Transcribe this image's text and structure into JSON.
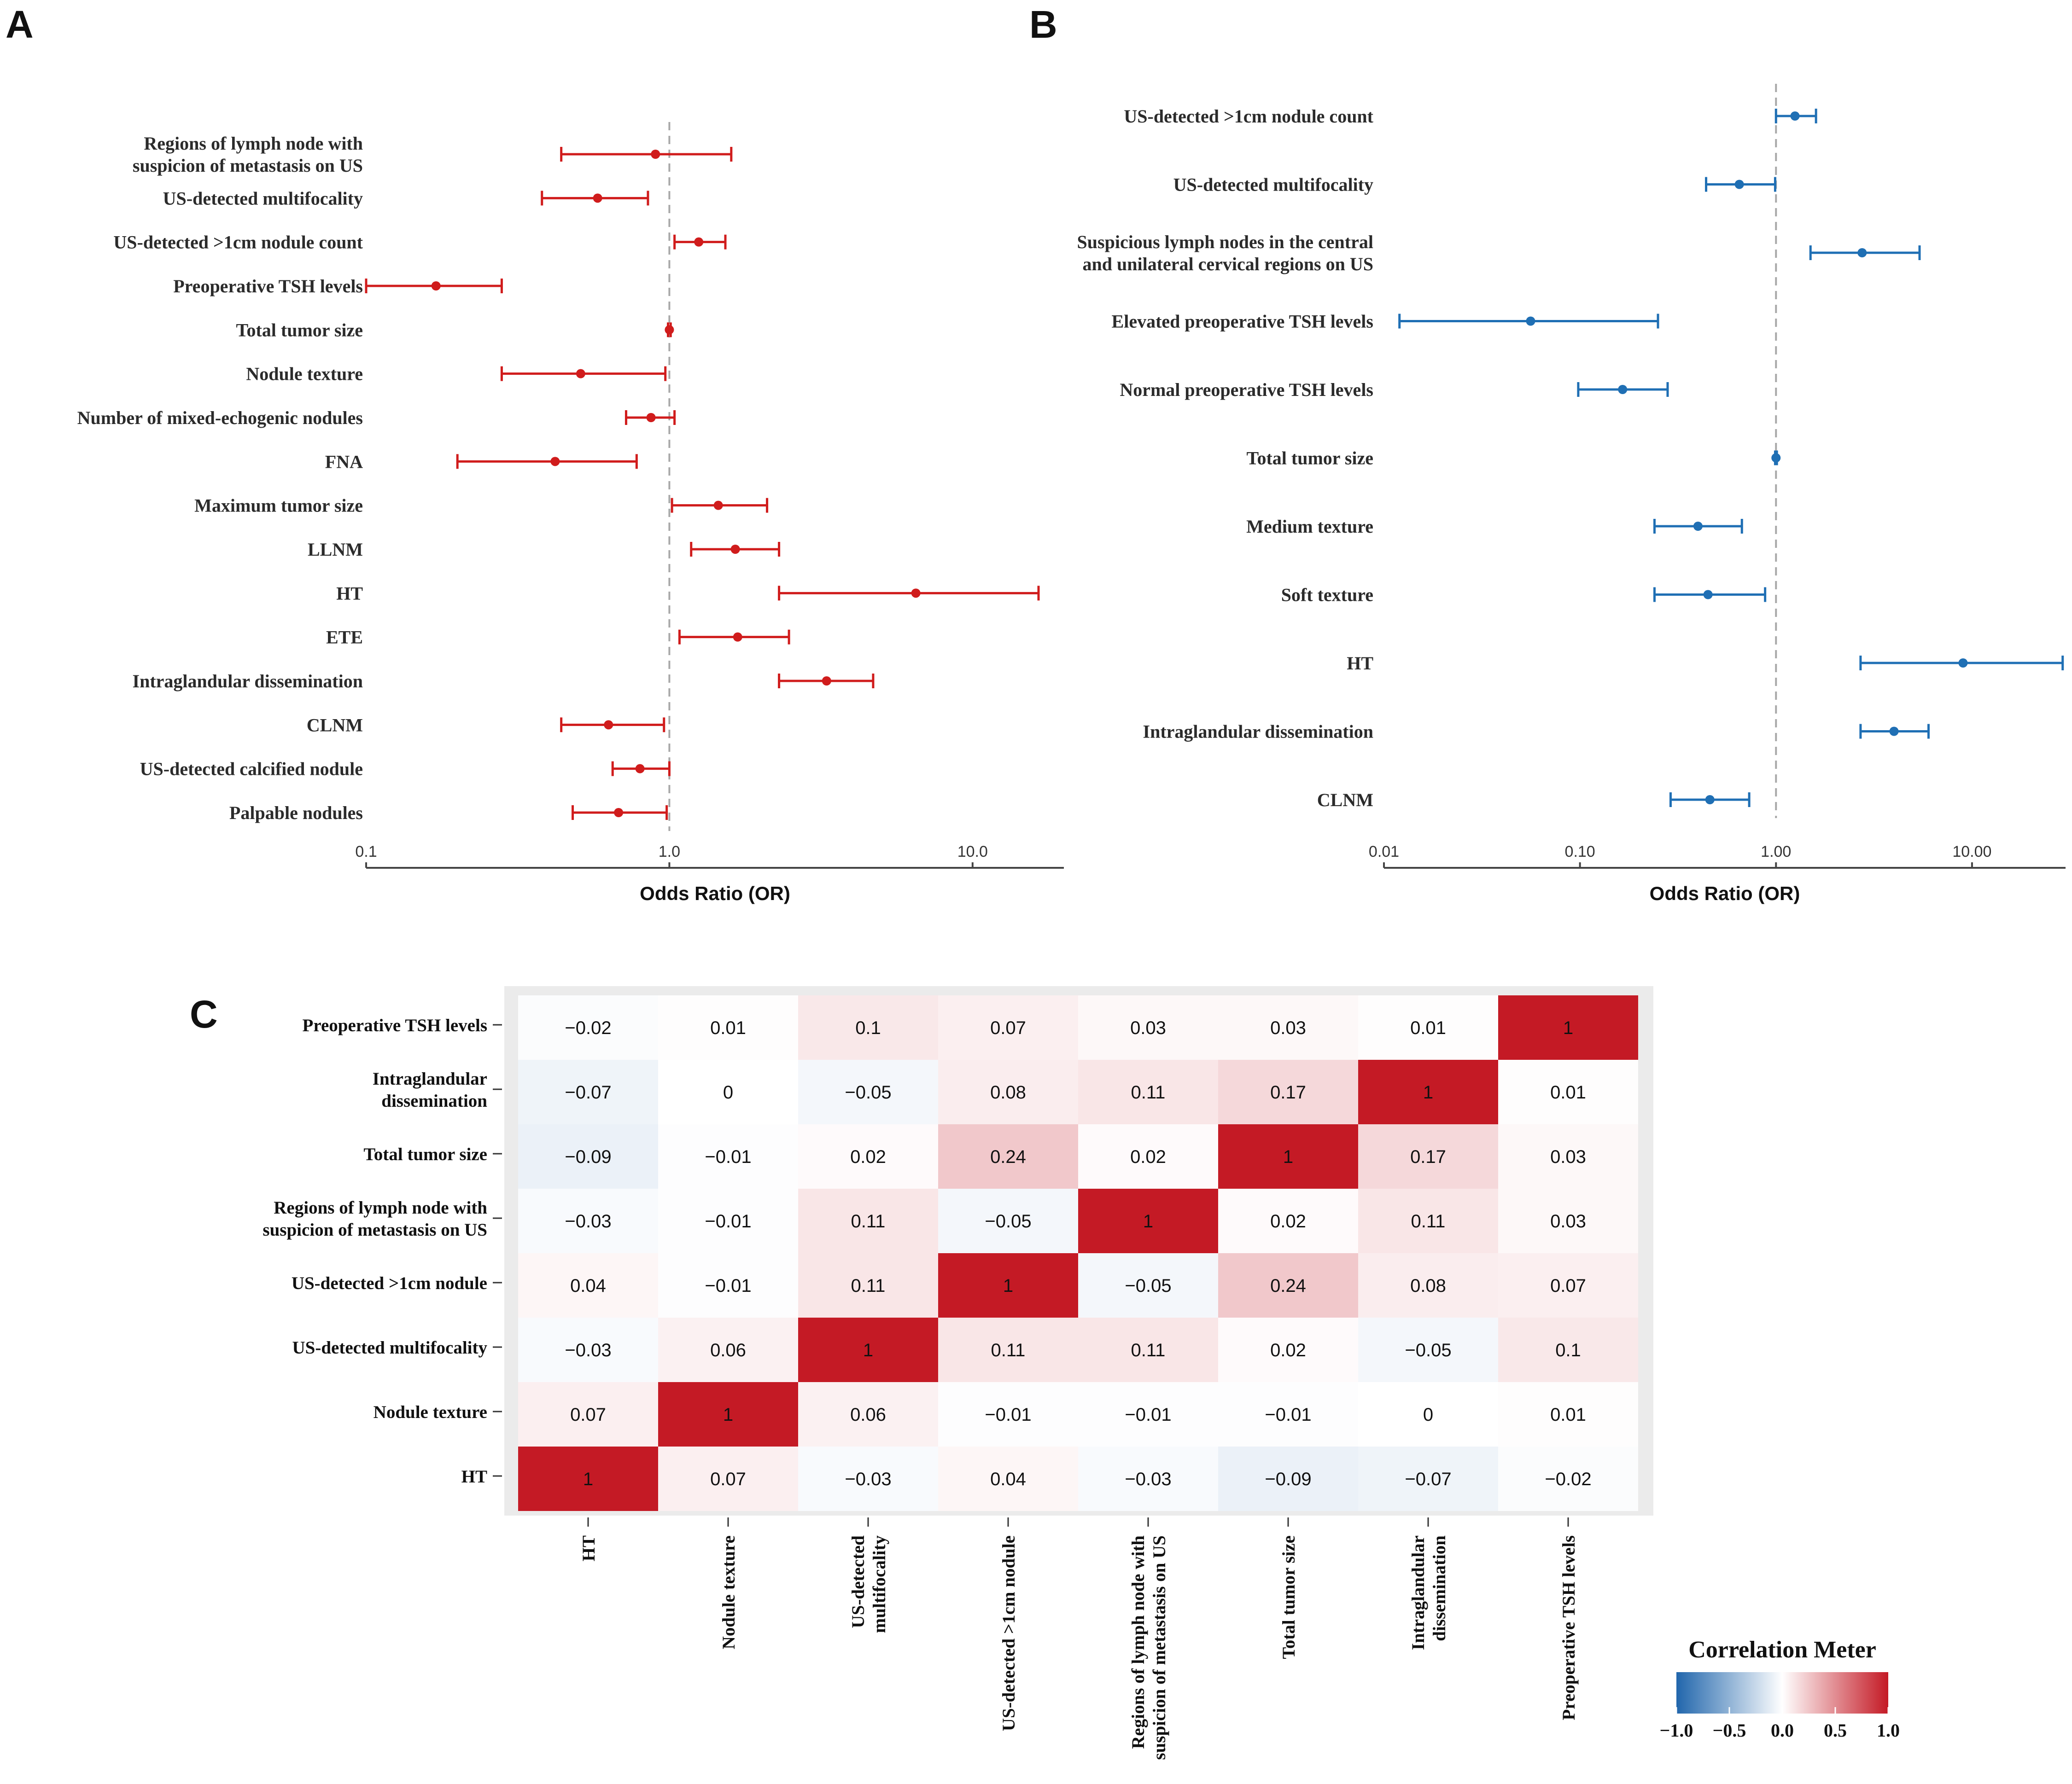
{
  "chart_data": [
    {
      "panel": "A",
      "type": "forest",
      "xlabel": "Odds Ratio (OR)",
      "xscale": "log",
      "xlim": [
        0.1,
        20
      ],
      "xticks": [
        "0.1",
        "1.0",
        "10.0"
      ],
      "xtick_values": [
        0.1,
        1,
        10
      ],
      "reference_line": 1,
      "color": "#d01c1c",
      "rows": [
        {
          "label": "Regions of lymph node with\nsuspicion of metastasis on US",
          "or": 0.9,
          "lo": 0.44,
          "hi": 1.6
        },
        {
          "label": "US-detected multifocality",
          "or": 0.58,
          "lo": 0.38,
          "hi": 0.85
        },
        {
          "label": "US-detected >1cm nodule count",
          "or": 1.25,
          "lo": 1.04,
          "hi": 1.53
        },
        {
          "label": "Preoperative TSH levels",
          "or": 0.17,
          "lo": 0.1,
          "hi": 0.28
        },
        {
          "label": "Total tumor size",
          "or": 1.0,
          "lo": 0.99,
          "hi": 1.01
        },
        {
          "label": "Nodule texture",
          "or": 0.51,
          "lo": 0.28,
          "hi": 0.97
        },
        {
          "label": "Number of mixed-echogenic nodules",
          "or": 0.87,
          "lo": 0.72,
          "hi": 1.04
        },
        {
          "label": "FNA",
          "or": 0.42,
          "lo": 0.2,
          "hi": 0.78
        },
        {
          "label": "Maximum tumor size",
          "or": 1.45,
          "lo": 1.02,
          "hi": 2.1
        },
        {
          "label": "LLNM",
          "or": 1.65,
          "lo": 1.18,
          "hi": 2.3
        },
        {
          "label": "HT",
          "or": 6.5,
          "lo": 2.3,
          "hi": 16.5
        },
        {
          "label": "ETE",
          "or": 1.68,
          "lo": 1.08,
          "hi": 2.48
        },
        {
          "label": "Intraglandular dissemination",
          "or": 3.3,
          "lo": 2.3,
          "hi": 4.7
        },
        {
          "label": "CLNM",
          "or": 0.63,
          "lo": 0.44,
          "hi": 0.96
        },
        {
          "label": "US-detected calcified nodule",
          "or": 0.8,
          "lo": 0.65,
          "hi": 1.0
        },
        {
          "label": "Palpable nodules",
          "or": 0.68,
          "lo": 0.48,
          "hi": 0.98
        }
      ]
    },
    {
      "panel": "B",
      "type": "forest",
      "xlabel": "Odds Ratio (OR)",
      "xscale": "log",
      "xlim": [
        0.01,
        30
      ],
      "xticks": [
        "0.01",
        "0.10",
        "1.00",
        "10.00"
      ],
      "xtick_values": [
        0.01,
        0.1,
        1,
        10
      ],
      "reference_line": 1,
      "color": "#1f6fb4",
      "rows": [
        {
          "label": "US-detected >1cm nodule count",
          "or": 1.25,
          "lo": 1.0,
          "hi": 1.6
        },
        {
          "label": "US-detected multifocality",
          "or": 0.65,
          "lo": 0.44,
          "hi": 0.99
        },
        {
          "label": "Suspicious lymph nodes in the central\nand unilateral cervical regions on US",
          "or": 2.75,
          "lo": 1.5,
          "hi": 5.4
        },
        {
          "label": "Elevated preoperative TSH levels",
          "or": 0.056,
          "lo": 0.012,
          "hi": 0.25
        },
        {
          "label": "Normal preoperative TSH levels",
          "or": 0.165,
          "lo": 0.098,
          "hi": 0.28
        },
        {
          "label": "Total tumor size",
          "or": 1.0,
          "lo": 0.99,
          "hi": 1.01
        },
        {
          "label": "Medium texture",
          "or": 0.4,
          "lo": 0.24,
          "hi": 0.67
        },
        {
          "label": "Soft texture",
          "or": 0.45,
          "lo": 0.24,
          "hi": 0.88
        },
        {
          "label": "HT",
          "or": 9.0,
          "lo": 2.7,
          "hi": 29.0
        },
        {
          "label": "Intraglandular dissemination",
          "or": 4.0,
          "lo": 2.7,
          "hi": 6.0
        },
        {
          "label": "CLNM",
          "or": 0.46,
          "lo": 0.29,
          "hi": 0.73
        }
      ]
    },
    {
      "panel": "C",
      "type": "heatmap",
      "variables_bottom": [
        "HT",
        "Nodule texture",
        "US-detected\nmultifocality",
        "US-detected >1cm nodule",
        "Regions of lymph node with\nsuspicion of metastasis on US",
        "Total tumor size",
        "Intraglandular\ndissemination",
        "Preoperative TSH levels"
      ],
      "variables_left_top_to_bottom": [
        "Preoperative TSH levels",
        "Intraglandular\ndissemination",
        "Total tumor size",
        "Regions of lymph node with\nsuspicion of metastasis on US",
        "US-detected >1cm nodule",
        "US-detected multifocality",
        "Nodule texture",
        "HT"
      ],
      "matrix_top_to_bottom": [
        [
          "−0.02",
          "0.01",
          "0.1",
          "0.07",
          "0.03",
          "0.03",
          "0.01",
          "1"
        ],
        [
          "−0.07",
          "0",
          "−0.05",
          "0.08",
          "0.11",
          "0.17",
          "1",
          "0.01"
        ],
        [
          "−0.09",
          "−0.01",
          "0.02",
          "0.24",
          "0.02",
          "1",
          "0.17",
          "0.03"
        ],
        [
          "−0.03",
          "−0.01",
          "0.11",
          "−0.05",
          "1",
          "0.02",
          "0.11",
          "0.03"
        ],
        [
          "0.04",
          "−0.01",
          "0.11",
          "1",
          "−0.05",
          "0.24",
          "0.08",
          "0.07"
        ],
        [
          "−0.03",
          "0.06",
          "1",
          "0.11",
          "0.11",
          "0.02",
          "−0.05",
          "0.1"
        ],
        [
          "0.07",
          "1",
          "0.06",
          "−0.01",
          "−0.01",
          "−0.01",
          "0",
          "0.01"
        ],
        [
          "1",
          "0.07",
          "−0.03",
          "0.04",
          "−0.03",
          "−0.09",
          "−0.07",
          "−0.02"
        ]
      ],
      "scale_limits": [
        -1,
        1
      ],
      "colors": {
        "low": "#2166ac",
        "mid": "#ffffff",
        "high": "#c41a25"
      },
      "legend": {
        "title": "Correlation Meter",
        "ticks": [
          "−1.0",
          "−0.5",
          "0.0",
          "0.5",
          "1.0"
        ],
        "tick_values": [
          -1,
          -0.5,
          0,
          0.5,
          1
        ],
        "placement": "bottom-right"
      }
    }
  ],
  "panels": {
    "a": "A",
    "b": "B",
    "c": "C"
  }
}
